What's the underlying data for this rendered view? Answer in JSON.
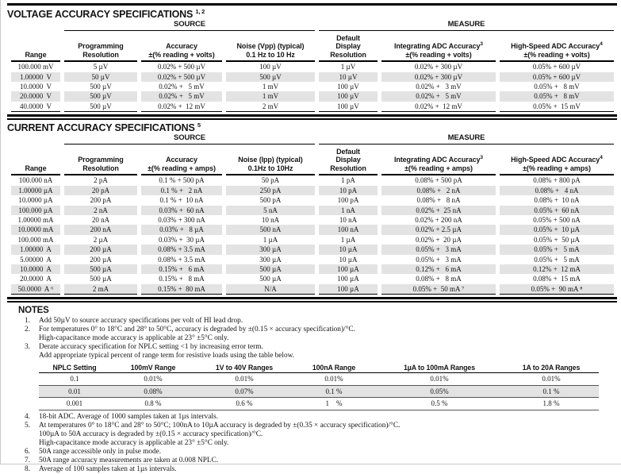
{
  "voltage": {
    "title": "VOLTAGE ACCURACY SPECIFICATIONS",
    "title_sup": "1, 2",
    "group_source": "SOURCE",
    "group_measure": "MEASURE",
    "columns": {
      "range": "Range",
      "prog_res": "Programming\nResolution",
      "accuracy": "Accuracy\n±(% reading + volts)",
      "noise": "Noise (Vpp) (typical)\n0.1 Hz to 10 Hz",
      "ddr": "Default\nDisplay\nResolution",
      "integrating": "Integrating ADC Accuracy",
      "integrating_sup": "3",
      "integrating_sub": "±(% reading + volts)",
      "high_speed": "High-Speed ADC Accuracy",
      "high_speed_sup": "4",
      "high_speed_sub": "±(% reading + volts)"
    },
    "rows": [
      [
        "100.000 mV",
        "5 µV",
        "0.02% + 500 µV",
        "100 µV",
        "1 µV",
        "0.02% + 300 µV",
        "0.05% + 600 µV"
      ],
      [
        "1.00000  V",
        "50 µV",
        "0.02% + 500 µV",
        "500 µV",
        "10 µV",
        "0.02% + 300 µV",
        "0.05% + 600 µV"
      ],
      [
        "10.0000  V",
        "500 µV",
        "0.02% +   5 mV",
        "1 mV",
        "100 µV",
        "0.02% +   3 mV",
        "0.05% +   8 mV"
      ],
      [
        "20.0000  V",
        "500 µV",
        "0.02% +   5 mV",
        "1 mV",
        "100 µV",
        "0.02% +   5 mV",
        "0.05% +   8 mV"
      ],
      [
        "40.0000  V",
        "500 µV",
        "0.02% +  12 mV",
        "2 mV",
        "100 µV",
        "0.02% +  12 mV",
        "0.05% +  15 mV"
      ]
    ]
  },
  "current": {
    "title": "CURRENT ACCURACY SPECIFICATIONS",
    "title_sup": "5",
    "group_source": "SOURCE",
    "group_measure": "MEASURE",
    "columns": {
      "range": "Range",
      "prog_res": "Programming\nResolution",
      "accuracy": "Accuracy\n±(% reading + amps)",
      "noise": "Noise (Ipp) (typical)\n0.1Hz to 10Hz",
      "ddr": "Default\nDisplay\nResolution",
      "integrating": "Integrating ADC Accuracy",
      "integrating_sup": "3",
      "integrating_sub": "±(% reading + amps)",
      "high_speed": "High-Speed ADC Accuracy",
      "high_speed_sup": "4",
      "high_speed_sub": "±(% reading + amps)"
    },
    "rows": [
      [
        "100.000 nA",
        "2 pA",
        "0.1 % + 500 pA",
        "50 pA",
        "1 pA",
        "0.08% + 500 pA",
        "0.08% + 800 pA"
      ],
      [
        "1.00000 µA",
        "20 pA",
        "0.1 % +   2 nA",
        "250 pA",
        "10 pA",
        "0.08% +   2 nA",
        "0.08% +   4 nA"
      ],
      [
        "10.0000 µA",
        "200 pA",
        "0.1 % +  10 nA",
        "500 pA",
        "100 pA",
        "0.08% +   8 nA",
        "0.08% +  10 nA"
      ],
      [
        "100.000 µA",
        "2 nA",
        "0.03% +  60 nA",
        "5 nA",
        "1 nA",
        "0.02% +  25 nA",
        "0.05% +  60 nA"
      ],
      [
        "1.00000 mA",
        "20 nA",
        "0.03% + 300 nA",
        "10 nA",
        "10 nA",
        "0.02% + 200 nA",
        "0.05% + 500 nA"
      ],
      [
        "10.0000 mA",
        "200 nA",
        "0.03% +   8 µA",
        "500 nA",
        "100 nA",
        "0.02% + 2.5 µA",
        "0.05% +  10 µA"
      ],
      [
        "100.000 mA",
        "2 µA",
        "0.03% +  30 µA",
        "1 µA",
        "1 µA",
        "0.02% +  20 µA",
        "0.05% +  50 µA"
      ],
      [
        "1.00000  A",
        "200 µA",
        "0.08% + 3.5 mA",
        "300 µA",
        "10 µA",
        "0.05% +   3 mA",
        "0.05% +   5 mA"
      ],
      [
        "5.00000  A",
        "200 µA",
        "0.08% + 3.5 mA",
        "300 µA",
        "10 µA",
        "0.05% +   3 mA",
        "0.05% +   5 mA"
      ],
      [
        "10.0000  A",
        "500 µA",
        "0.15% +   6 mA",
        "500 µA",
        "100 µA",
        "0.12% +   6 mA",
        "0.12% +  12 mA"
      ],
      [
        "20.0000  A",
        "500 µA",
        "0.15% +   8 mA",
        "500 µA",
        "100 µA",
        "0.08% +   8 mA",
        "0.08% +  15 mA"
      ],
      [
        "50.0000  A ⁶",
        "2 mA",
        "0.15% +  80 mA",
        "N/A",
        "100 µA",
        "0.05% +  50 mA ⁷",
        "0.05% +  90 mA ⁸"
      ]
    ]
  },
  "notes": {
    "heading": "NOTES",
    "items_a": [
      {
        "num": "1.",
        "text": "Add 50µV to source accuracy specifications per volt of HI lead drop."
      },
      {
        "num": "2.",
        "text": "For temperatures 0° to 18°C and 28° to 50°C, accuracy is degraded by ±(0.15 × accuracy specification)/°C.\nHigh-capacitance mode accuracy is applicable at 23° ±5°C only."
      },
      {
        "num": "3.",
        "text": "Derate accuracy specification for NPLC setting <1 by increasing error term.\nAdd appropriate typical percent of range term for resistive loads using the table below."
      }
    ],
    "nplc_table": {
      "columns": [
        "NPLC Setting",
        "100mV Range",
        "1V to 40V Ranges",
        "100nA Range",
        "1µA to 100mA Ranges",
        "1A to 20A Ranges"
      ],
      "rows": [
        [
          "0.1",
          "0.01%",
          "0.01%",
          "0.01%",
          "0.01%",
          "0.01%"
        ],
        [
          "0.01",
          "0.08%",
          "0.07%",
          "0.1 %",
          "0.05%",
          "0.1 %"
        ],
        [
          "0.001",
          "0.8 %",
          "0.6 %",
          "1    %",
          "0.5 %",
          "1.8 %"
        ]
      ]
    },
    "items_b": [
      {
        "num": "4.",
        "text": "18-bit ADC. Average of 1000 samples taken at 1µs intervals."
      },
      {
        "num": "5.",
        "text": "At temperatures 0° to 18°C and 28° to 50°C; 100nA to 10µA accuracy is degraded by ±(0.35 × accuracy specification)/°C.\n100µA to 50A accuracy is degraded by ±(0.15 × accuracy specification)/°C.\nHigh-capacitance mode accuracy is applicable at 23° ±5°C only."
      },
      {
        "num": "6.",
        "text": "50A range accessible only in pulse mode."
      },
      {
        "num": "7.",
        "text": "50A range accuracy measurements are taken at 0.008 NPLC."
      },
      {
        "num": "8.",
        "text": "Average of 100 samples taken at 1µs intervals."
      }
    ]
  }
}
